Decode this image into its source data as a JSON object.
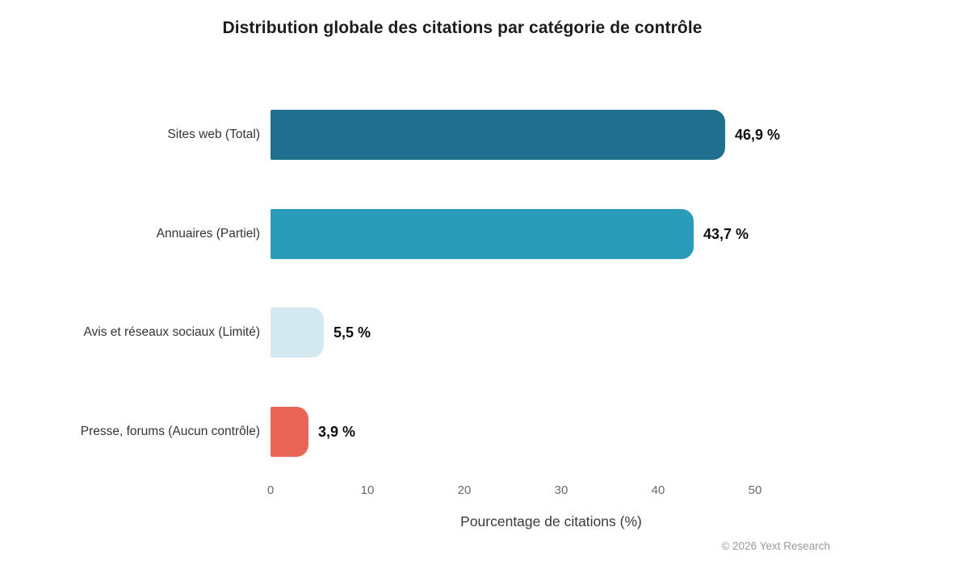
{
  "chart_data": {
    "type": "bar",
    "orientation": "horizontal",
    "title": "Distribution globale des citations par catégorie de contrôle",
    "xlabel": "Pourcentage de citations (%)",
    "ylabel": "",
    "categories": [
      "Sites web (Total)",
      "Annuaires (Partiel)",
      "Avis et réseaux sociaux (Limité)",
      "Presse, forums (Aucun contrôle)"
    ],
    "values": [
      46.9,
      43.7,
      5.5,
      3.9
    ],
    "value_labels": [
      "46,9 %",
      "43,7 %",
      "5,5 %",
      "3,9 %"
    ],
    "bar_colors": [
      "#216f8e",
      "#2a9bb8",
      "#d5e9f0",
      "#eb6557"
    ],
    "xticks": [
      "0",
      "10",
      "20",
      "30",
      "40",
      "50"
    ],
    "xtick_values": [
      0,
      10,
      20,
      30,
      40,
      50
    ],
    "xlim": [
      0,
      50
    ],
    "grid": false,
    "legend": false,
    "annotation": "© 2026 Yext Research"
  }
}
